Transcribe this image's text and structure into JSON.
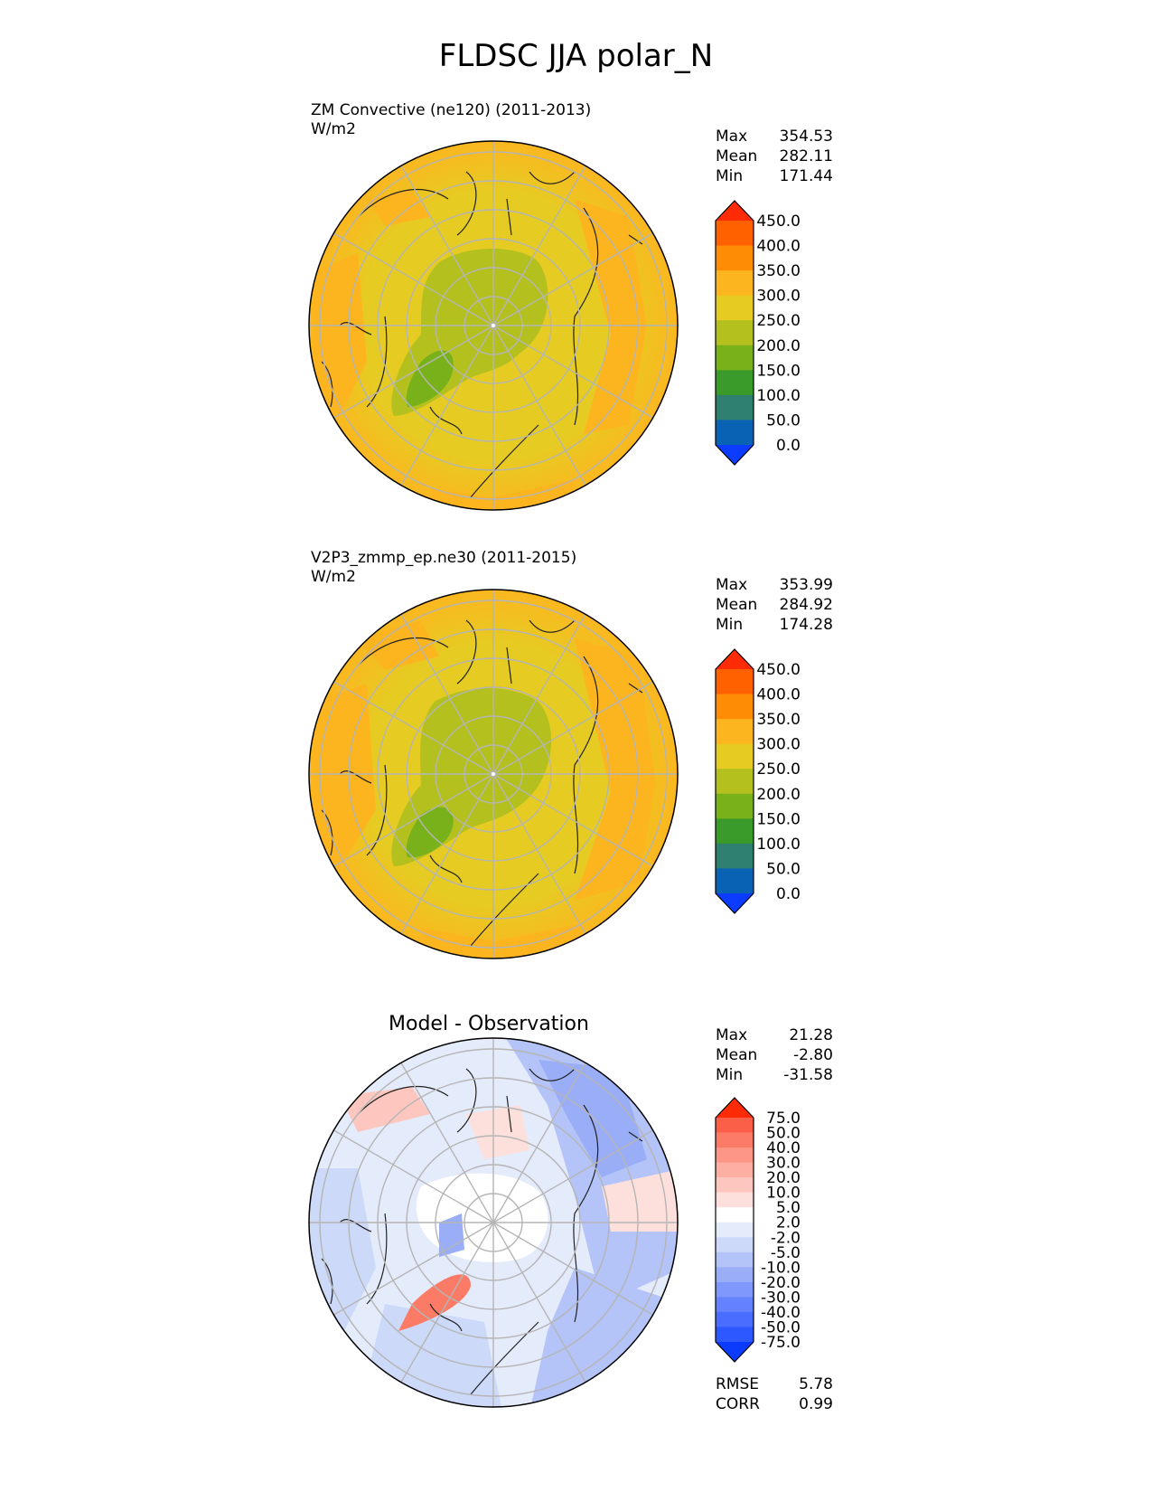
{
  "figure": {
    "title": "FLDSC JJA polar_N"
  },
  "panels": [
    {
      "id": "test",
      "subtitle_line1": "ZM Convective (ne120) (2011-2013)",
      "subtitle_line2": "W/m2",
      "stats": {
        "max_label": "Max",
        "max": "354.53",
        "mean_label": "Mean",
        "mean": "282.11",
        "min_label": "Min",
        "min": "171.44"
      },
      "colorbar": {
        "levels": [
          "0.0",
          "50.0",
          "100.0",
          "150.0",
          "200.0",
          "250.0",
          "300.0",
          "350.0",
          "400.0",
          "450.0"
        ],
        "colors": [
          "#0b3cff",
          "#0a62b4",
          "#2f8070",
          "#3a9b2a",
          "#78b119",
          "#b3c01d",
          "#e6cb22",
          "#fdb51f",
          "#ff8c05",
          "#ff6101",
          "#ff2b06"
        ]
      }
    },
    {
      "id": "reference",
      "subtitle_line1": "V2P3_zmmp_ep.ne30 (2011-2015)",
      "subtitle_line2": "W/m2",
      "stats": {
        "max_label": "Max",
        "max": "353.99",
        "mean_label": "Mean",
        "mean": "284.92",
        "min_label": "Min",
        "min": "174.28"
      },
      "colorbar": {
        "levels": [
          "0.0",
          "50.0",
          "100.0",
          "150.0",
          "200.0",
          "250.0",
          "300.0",
          "350.0",
          "400.0",
          "450.0"
        ],
        "colors": [
          "#0b3cff",
          "#0a62b4",
          "#2f8070",
          "#3a9b2a",
          "#78b119",
          "#b3c01d",
          "#e6cb22",
          "#fdb51f",
          "#ff8c05",
          "#ff6101",
          "#ff2b06"
        ]
      }
    },
    {
      "id": "diff",
      "center_title": "Model - Observation",
      "stats": {
        "max_label": "Max",
        "max": "21.28",
        "mean_label": "Mean",
        "mean": "-2.80",
        "min_label": "Min",
        "min": "-31.58"
      },
      "metrics": {
        "rmse_label": "RMSE",
        "rmse": "5.78",
        "corr_label": "CORR",
        "corr": "0.99"
      },
      "colorbar": {
        "levels": [
          "-75.0",
          "-50.0",
          "-40.0",
          "-30.0",
          "-20.0",
          "-10.0",
          "-5.0",
          "-2.0",
          "2.0",
          "5.0",
          "10.0",
          "20.0",
          "30.0",
          "40.0",
          "50.0",
          "75.0"
        ],
        "colors": [
          "#0a3bff",
          "#2d57ff",
          "#4a6dff",
          "#6482fd",
          "#7f98fb",
          "#9aadf7",
          "#b4c3f8",
          "#cdd9f9",
          "#e4ebfb",
          "#ffffff",
          "#fde0dc",
          "#fdc7bf",
          "#fdafa3",
          "#fd9686",
          "#fb7b67",
          "#fc5f47",
          "#ff2b06"
        ]
      }
    }
  ]
}
